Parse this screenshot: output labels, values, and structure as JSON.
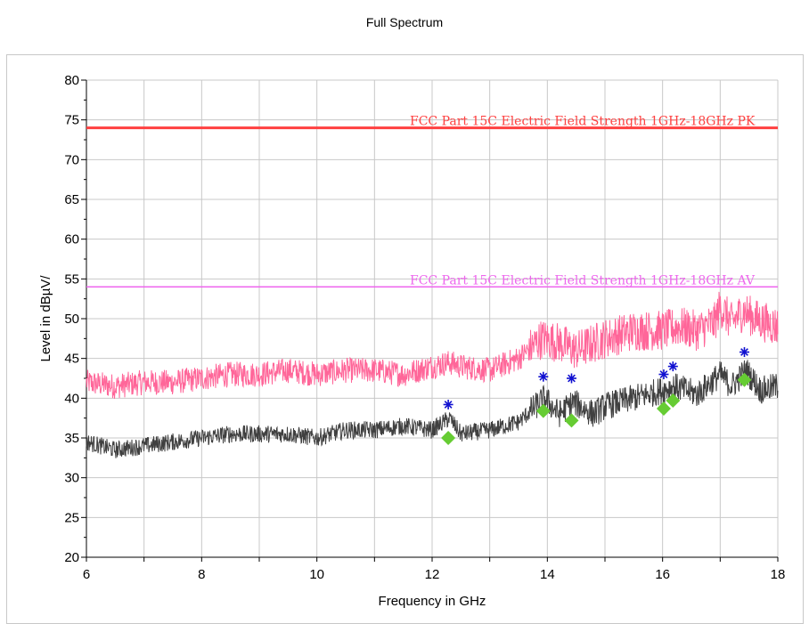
{
  "chart_data": {
    "type": "line",
    "title": "Full Spectrum",
    "xlabel": "Frequency in GHz",
    "ylabel": "Level in dBµV/",
    "xlim": [
      6,
      18
    ],
    "ylim": [
      20,
      80
    ],
    "x_ticks": [
      6,
      8,
      10,
      12,
      14,
      16,
      18
    ],
    "y_ticks": [
      20,
      25,
      30,
      35,
      40,
      45,
      50,
      55,
      60,
      65,
      70,
      75,
      80
    ],
    "grid": true,
    "limit_lines": [
      {
        "name": "FCC Part 15C Electric Field Strength 1GHz-18GHz PK",
        "value": 74,
        "color": "#ff4040"
      },
      {
        "name": "FCC Part 15C Electric Field Strength 1GHz-18GHz AV",
        "value": 54,
        "color": "#ee66ee"
      }
    ],
    "series": [
      {
        "color": "#ff6699",
        "x": [
          6.0,
          6.5,
          7.0,
          7.5,
          8.0,
          8.5,
          9.0,
          9.5,
          10.0,
          10.5,
          11.0,
          11.5,
          12.0,
          12.3,
          12.5,
          13.0,
          13.5,
          13.9,
          14.2,
          14.5,
          15.0,
          15.5,
          16.0,
          16.3,
          16.6,
          16.9,
          17.0,
          17.2,
          17.4,
          17.6,
          18.0
        ],
        "y": [
          42,
          41.5,
          42,
          42,
          42.5,
          43,
          43,
          43.5,
          43,
          43.5,
          43.5,
          43,
          44,
          44.5,
          44,
          43.5,
          45,
          47.5,
          47,
          46,
          47.5,
          48.5,
          48.5,
          49,
          48.5,
          49.5,
          51.5,
          49.5,
          51,
          50,
          49
        ]
      },
      {
        "color": "#404040",
        "x": [
          6.0,
          6.5,
          7.0,
          7.5,
          8.0,
          8.5,
          9.0,
          9.5,
          10.0,
          10.5,
          11.0,
          11.5,
          12.0,
          12.3,
          12.5,
          13.0,
          13.5,
          13.95,
          14.2,
          14.45,
          14.8,
          15.0,
          15.5,
          16.0,
          16.2,
          16.6,
          17.0,
          17.2,
          17.45,
          17.7,
          18.0
        ],
        "y": [
          34.5,
          33.5,
          34,
          34.5,
          35,
          35.5,
          35.5,
          35.5,
          35,
          36,
          36,
          36.5,
          36,
          37.5,
          35.5,
          36,
          37,
          40,
          38,
          39.5,
          38,
          39,
          40,
          41,
          41.5,
          40.5,
          43,
          41.5,
          43.5,
          41,
          41.5
        ]
      }
    ],
    "peak_markers": {
      "color": "#1010d0",
      "symbol": "asterisk",
      "x": [
        12.28,
        13.93,
        14.42,
        16.02,
        16.18,
        17.42
      ],
      "y": [
        39.2,
        42.7,
        42.5,
        43.0,
        44.0,
        45.8
      ]
    },
    "average_markers": {
      "color": "#66cc33",
      "symbol": "diamond",
      "x": [
        12.28,
        13.93,
        14.42,
        16.02,
        16.18,
        17.42
      ],
      "y": [
        35.0,
        38.4,
        37.2,
        38.7,
        39.7,
        42.3
      ]
    }
  }
}
